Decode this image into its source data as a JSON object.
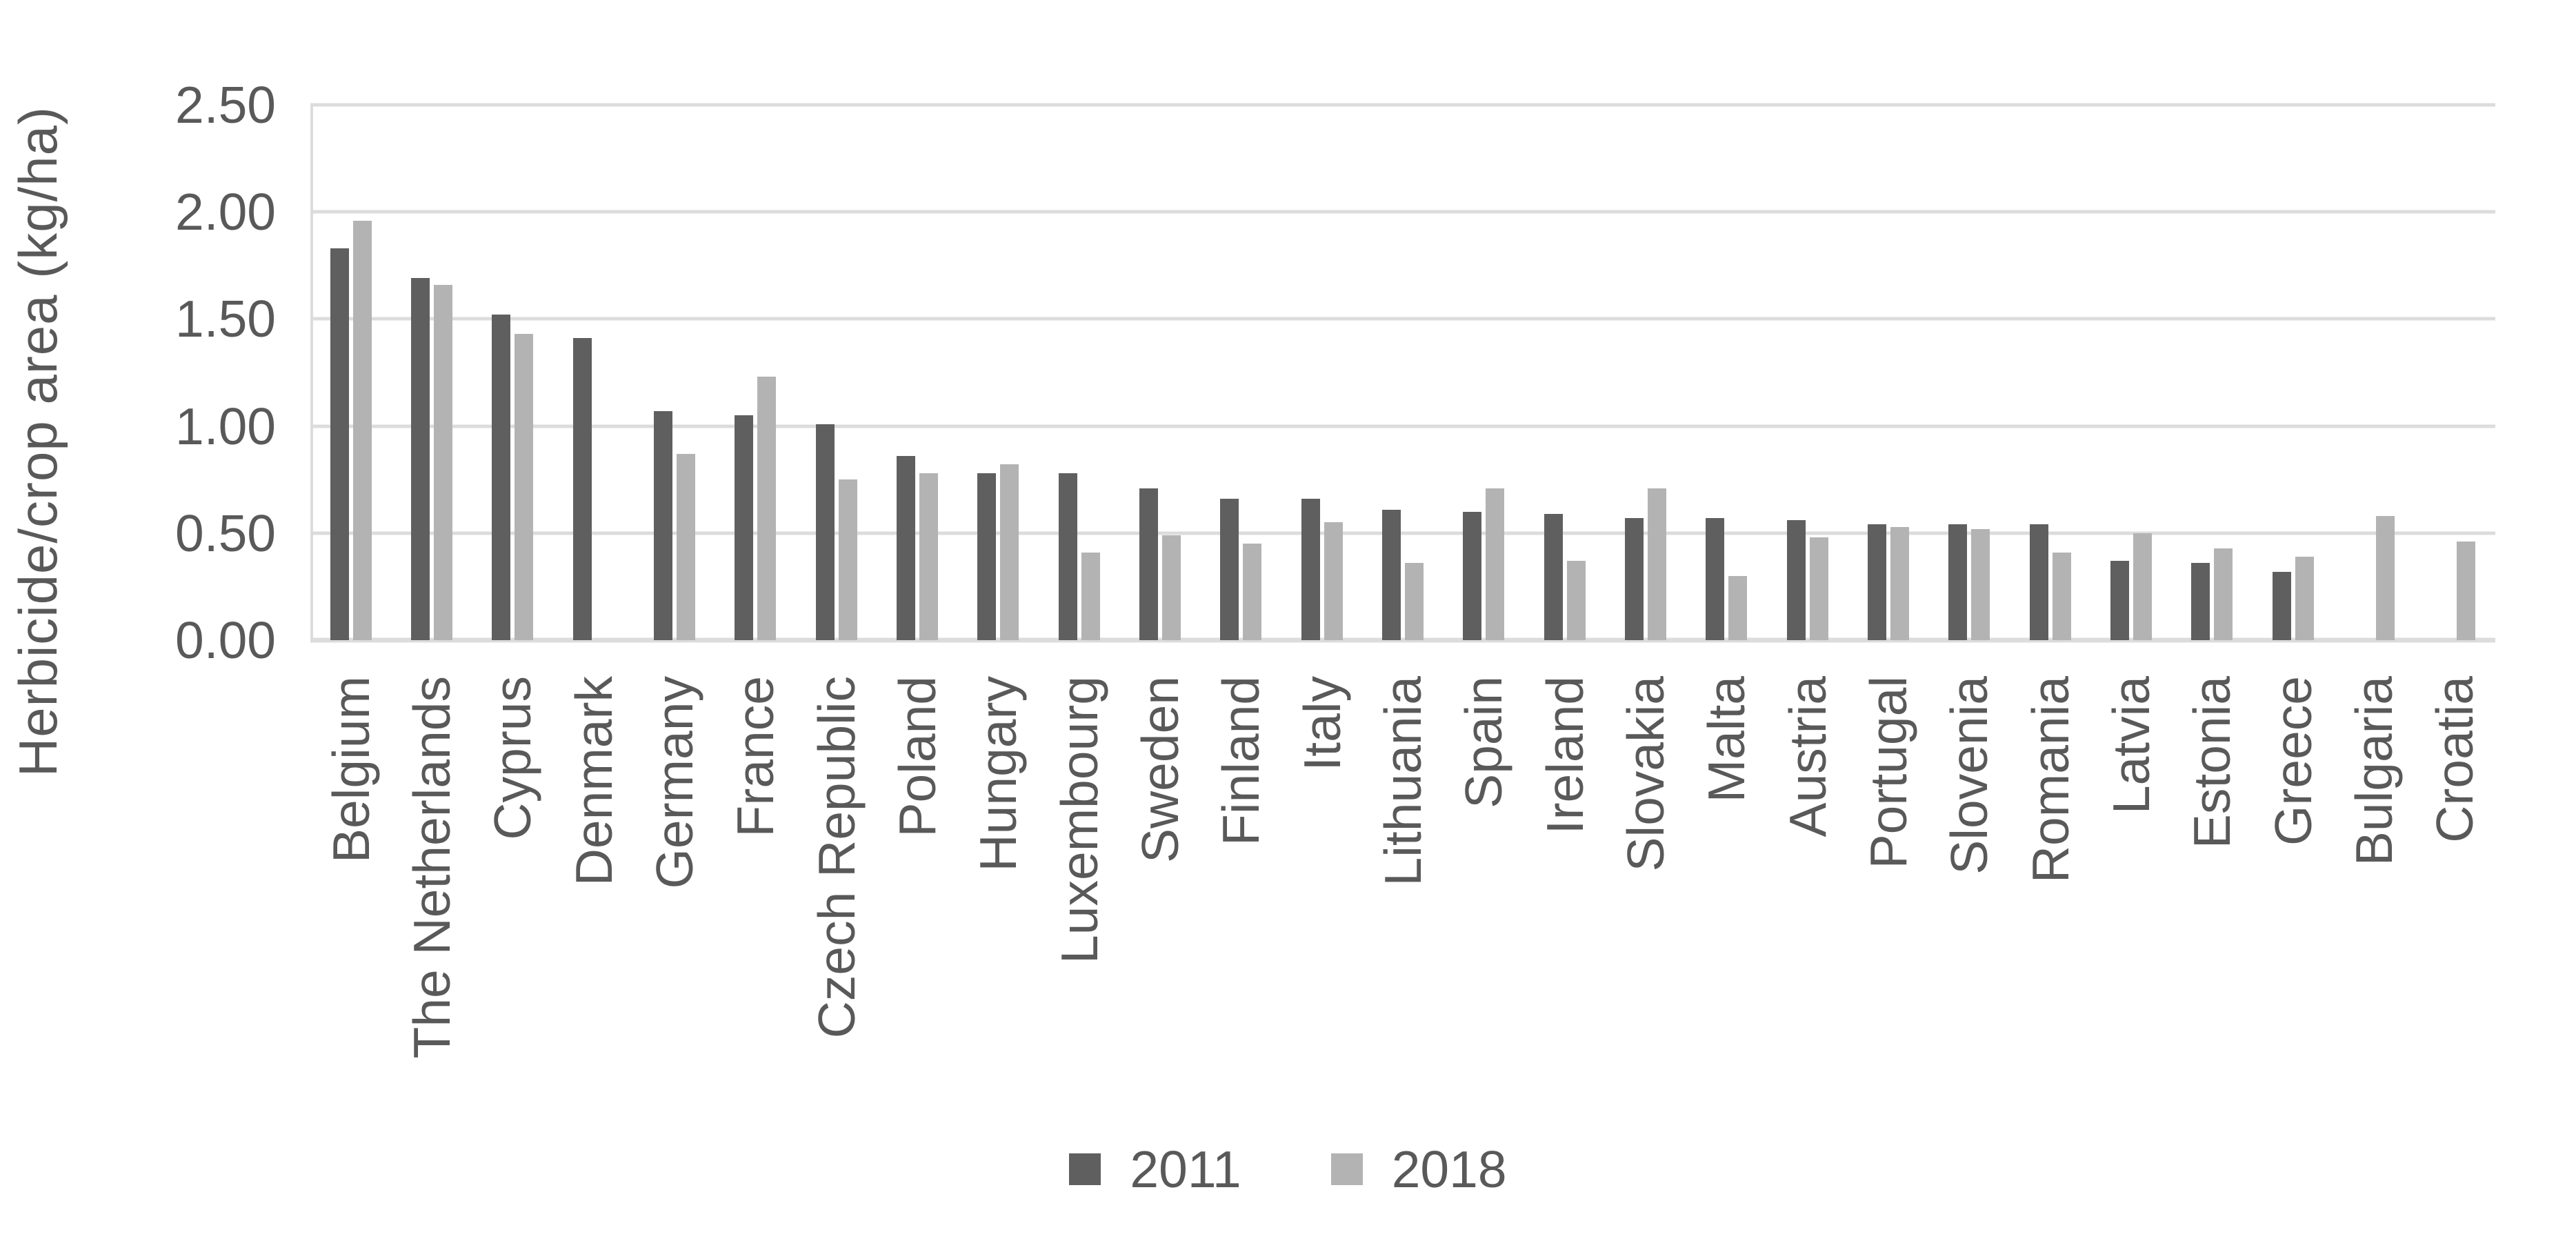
{
  "figure": {
    "background": "#ffffff",
    "text_color": "#595959",
    "gridline_color": "#dcdcdc"
  },
  "chart_data": {
    "type": "bar",
    "title": "",
    "xlabel": "",
    "ylabel": "Herbicide/crop area (kg/ha)",
    "ylim": [
      0,
      2.5
    ],
    "ytick_labels": [
      "0.00",
      "0.50",
      "1.00",
      "1.50",
      "2.00",
      "2.50"
    ],
    "grid": true,
    "legend_position": "bottom",
    "categories": [
      "Belgium",
      "The Netherlands",
      "Cyprus",
      "Denmark",
      "Germany",
      "France",
      "Czech Republic",
      "Poland",
      "Hungary",
      "Luxembourg",
      "Sweden",
      "Finland",
      "Italy",
      "Lithuania",
      "Spain",
      "Ireland",
      "Slovakia",
      "Malta",
      "Austria",
      "Portugal",
      "Slovenia",
      "Romania",
      "Latvia",
      "Estonia",
      "Greece",
      "Bulgaria",
      "Croatia"
    ],
    "series": [
      {
        "name": "2011",
        "color": "#5f5f5f",
        "values": [
          1.83,
          1.69,
          1.52,
          1.41,
          1.07,
          1.05,
          1.01,
          0.86,
          0.78,
          0.78,
          0.71,
          0.66,
          0.66,
          0.61,
          0.6,
          0.59,
          0.57,
          0.57,
          0.56,
          0.54,
          0.54,
          0.54,
          0.37,
          0.36,
          0.32,
          null,
          null
        ]
      },
      {
        "name": "2018",
        "color": "#b3b3b3",
        "values": [
          1.96,
          1.66,
          1.43,
          null,
          0.87,
          1.23,
          0.75,
          0.78,
          0.82,
          0.41,
          0.49,
          0.45,
          0.55,
          0.36,
          0.71,
          0.37,
          0.71,
          0.3,
          0.48,
          0.53,
          0.52,
          0.41,
          0.5,
          0.43,
          0.39,
          0.58,
          0.46
        ]
      }
    ]
  }
}
